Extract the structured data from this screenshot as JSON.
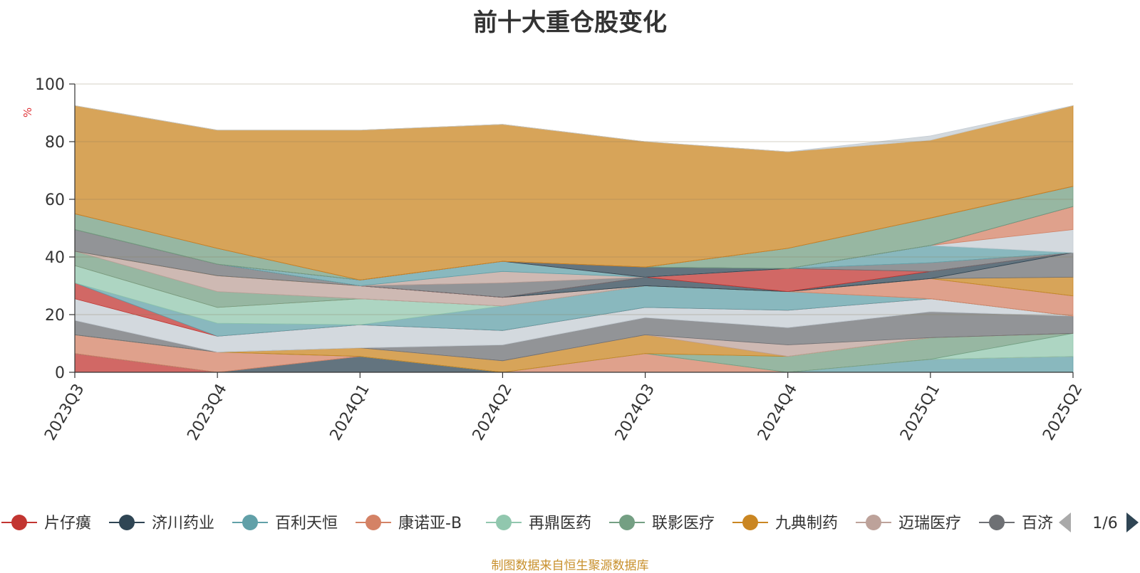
{
  "chart_data": {
    "type": "area",
    "title": "前十大重仓股变化",
    "ylabel": "%",
    "ylim": [
      0,
      100
    ],
    "y_ticks": [
      0,
      20,
      40,
      60,
      80,
      100
    ],
    "categories": [
      "2023Q3",
      "2023Q4",
      "2024Q1",
      "2024Q2",
      "2024Q3",
      "2024Q4",
      "2025Q1",
      "2025Q2"
    ],
    "grid": true,
    "stacked": true,
    "series": [
      {
        "name": "片仔癀",
        "color": "#c23531",
        "values": [
          6.5,
          0,
          0,
          0,
          0,
          0,
          0,
          0
        ]
      },
      {
        "name": "济川药业",
        "color": "#2f4554",
        "values": [
          0,
          0,
          5.5,
          0,
          0,
          0,
          0,
          0
        ]
      },
      {
        "name": "百利天恒",
        "color": "#61a0a8",
        "values": [
          0,
          0,
          0,
          0,
          0,
          0,
          4.5,
          5.5
        ]
      },
      {
        "name": "康诺亚-B",
        "color": "#d48265",
        "values": [
          6.5,
          7,
          0,
          0,
          6.5,
          0,
          0,
          0
        ]
      },
      {
        "name": "再鼎医药",
        "color": "#91c7ae",
        "values": [
          0,
          0,
          0,
          0,
          0,
          0,
          0,
          8
        ]
      },
      {
        "name": "联影医疗",
        "color": "#749f83",
        "values": [
          0,
          0,
          0,
          0,
          0,
          5.5,
          7.5,
          0
        ]
      },
      {
        "name": "九典制药",
        "color": "#ca8622",
        "values": [
          0,
          0,
          3,
          4,
          6.5,
          0,
          0,
          0
        ]
      },
      {
        "name": "迈瑞医疗",
        "color": "#bda29a",
        "values": [
          0,
          0,
          0,
          0,
          0,
          4,
          0,
          0
        ]
      },
      {
        "name": "百济神州",
        "color": "#6e7074",
        "values": [
          5,
          0,
          0,
          5.5,
          6,
          6,
          9,
          6
        ]
      },
      {
        "name": "",
        "color": "#c4ccd3",
        "values": [
          7.5,
          5.5,
          8,
          5,
          3.5,
          6,
          4.5,
          0
        ]
      },
      {
        "name": "",
        "color": "#c23531",
        "values": [
          5.5,
          0,
          0,
          0,
          0,
          0,
          0,
          0
        ]
      },
      {
        "name": "",
        "color": "#61a0a8",
        "values": [
          0,
          4.5,
          0,
          8.5,
          7.5,
          6.5,
          0,
          0
        ]
      },
      {
        "name": "",
        "color": "#91c7ae",
        "values": [
          6,
          5.5,
          9,
          0,
          0,
          0,
          0,
          0
        ]
      },
      {
        "name": "",
        "color": "#d48265",
        "values": [
          0,
          0,
          0,
          0,
          0,
          0,
          7,
          7
        ]
      },
      {
        "name": "",
        "color": "#749f83",
        "values": [
          5,
          5.5,
          0,
          0,
          0,
          0,
          0,
          0
        ]
      },
      {
        "name": "",
        "color": "#bda29a",
        "values": [
          0,
          5.5,
          4.5,
          3,
          0,
          0,
          0,
          0
        ]
      },
      {
        "name": "",
        "color": "#ca8622",
        "values": [
          0,
          0,
          0,
          0,
          0,
          0,
          0,
          6.5
        ]
      },
      {
        "name": "",
        "color": "#6e7074",
        "values": [
          7.5,
          4,
          0,
          0,
          0,
          0,
          0,
          8.5
        ]
      },
      {
        "name": "",
        "color": "#2f4554",
        "values": [
          0,
          0,
          0,
          0,
          3,
          0,
          2.5,
          0
        ]
      },
      {
        "name": "",
        "color": "#c23531",
        "values": [
          0,
          0,
          0,
          0,
          0,
          8,
          0,
          0
        ]
      },
      {
        "name": "",
        "color": "#6e7074",
        "values": [
          0,
          0,
          0,
          5,
          0,
          0,
          3,
          0
        ]
      },
      {
        "name": "",
        "color": "#bda29a",
        "values": [
          0,
          0,
          0,
          4,
          0,
          0,
          0,
          0
        ]
      },
      {
        "name": "",
        "color": "#61a0a8",
        "values": [
          0,
          0,
          2,
          3.5,
          0,
          0,
          6,
          0
        ]
      },
      {
        "name": "",
        "color": "#c4ccd3",
        "values": [
          0,
          0,
          0,
          0,
          0,
          0,
          0,
          8
        ]
      },
      {
        "name": "",
        "color": "#d48265",
        "values": [
          0,
          0,
          0,
          0,
          0,
          0,
          0,
          8
        ]
      },
      {
        "name": "",
        "color": "#2f4554",
        "values": [
          0,
          0,
          0,
          0,
          3.5,
          0,
          0,
          0
        ]
      },
      {
        "name": "",
        "color": "#6e7074",
        "values": [
          0,
          0,
          0,
          0,
          0,
          0,
          0,
          0
        ]
      },
      {
        "name": "",
        "color": "#749f83",
        "values": [
          5.5,
          5.5,
          0,
          0,
          0,
          7,
          9.5,
          7
        ]
      },
      {
        "name": "",
        "color": "#91c7ae",
        "values": [
          0,
          0,
          0,
          0,
          0,
          0,
          0,
          0
        ]
      },
      {
        "name": "",
        "color": "#c23531",
        "values": [
          0,
          0,
          0,
          0,
          0,
          0,
          0,
          0
        ]
      },
      {
        "name": "",
        "color": "#ca8622",
        "values": [
          37.5,
          41,
          52,
          47.5,
          43.5,
          33.5,
          27,
          28
        ]
      },
      {
        "name": "",
        "color": "#c4ccd3",
        "values": [
          0,
          0,
          0,
          0,
          0,
          0,
          1.5,
          0
        ]
      }
    ],
    "legend": {
      "position": "bottom",
      "pager_text": "1/6",
      "visible_items": [
        "片仔癀",
        "济川药业",
        "百利天恒",
        "康诺亚-B",
        "再鼎医药",
        "联影医疗",
        "九典制药",
        "迈瑞医疗",
        "百济神州"
      ]
    }
  },
  "source_note": "制图数据来自恒生聚源数据库"
}
